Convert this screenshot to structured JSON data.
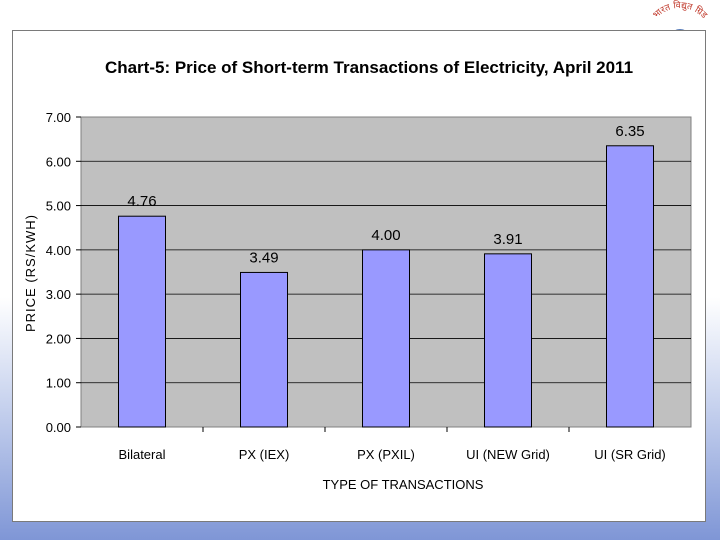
{
  "chart_data": {
    "type": "bar",
    "title": "Chart-5: Price of Short-term Transactions of Electricity, April 2011",
    "xlabel": "TYPE OF TRANSACTIONS",
    "ylabel": "PRICE (RS/KWH)",
    "categories": [
      "Bilateral",
      "PX (IEX)",
      "PX (PXIL)",
      "UI (NEW Grid)",
      "UI (SR Grid)"
    ],
    "values": [
      4.76,
      3.49,
      4.0,
      3.91,
      6.35
    ],
    "value_labels": [
      "4.76",
      "3.49",
      "4.00",
      "3.91",
      "6.35"
    ],
    "ylim": [
      0,
      7
    ],
    "yticks": [
      "0.00",
      "1.00",
      "2.00",
      "3.00",
      "4.00",
      "5.00",
      "6.00",
      "7.00"
    ],
    "grid": true,
    "colors": {
      "bar": "#9999ff",
      "plot_bg": "#c0c0c0",
      "grid": "#000000"
    }
  },
  "logo": {
    "caption": "भारत विद्युत ग्रिड"
  }
}
